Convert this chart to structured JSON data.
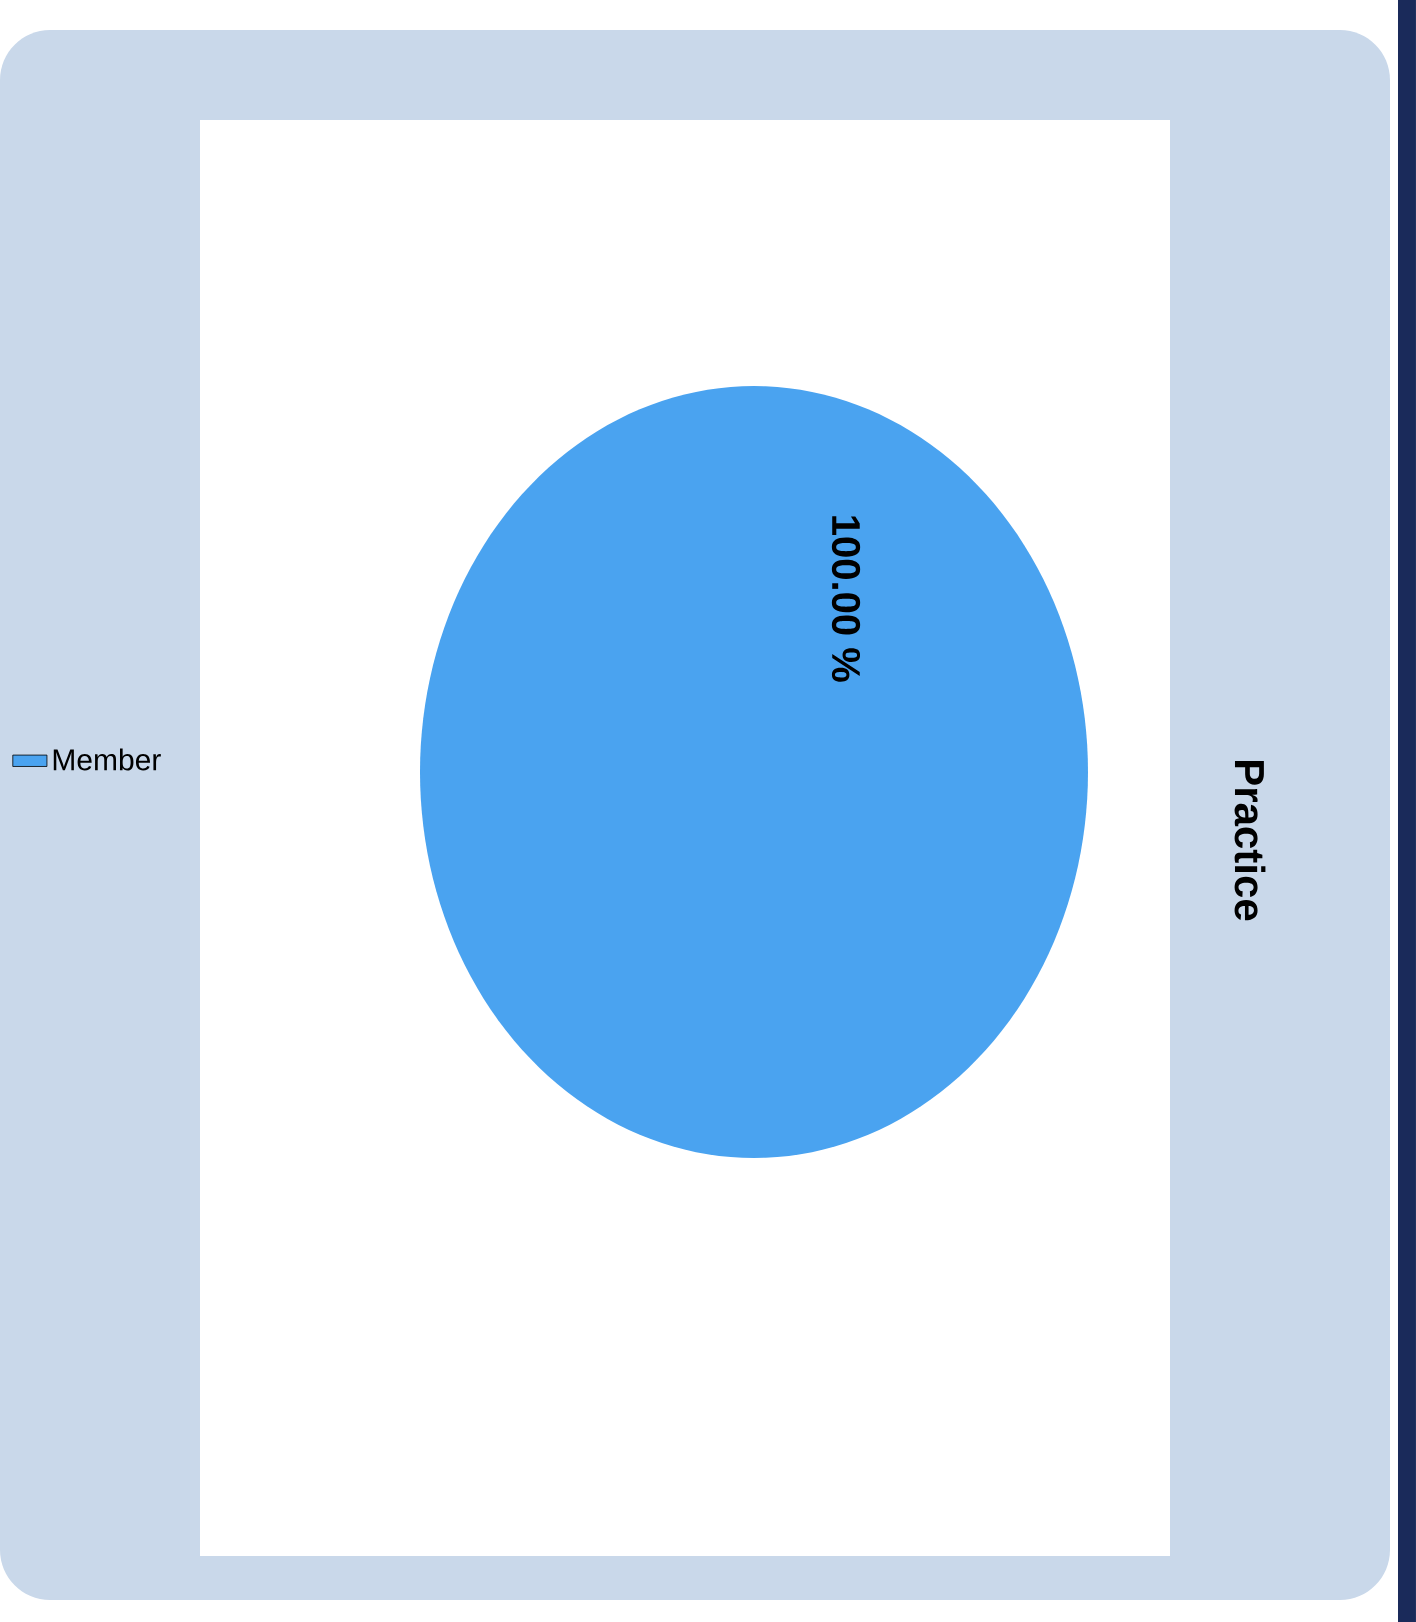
{
  "chart_data": {
    "type": "pie",
    "title": "Practice",
    "categories": [
      "Member"
    ],
    "values": [
      100
    ],
    "colors": [
      "#4aa3f0"
    ],
    "value_labels": [
      "100.00 %"
    ],
    "legend": "left"
  }
}
